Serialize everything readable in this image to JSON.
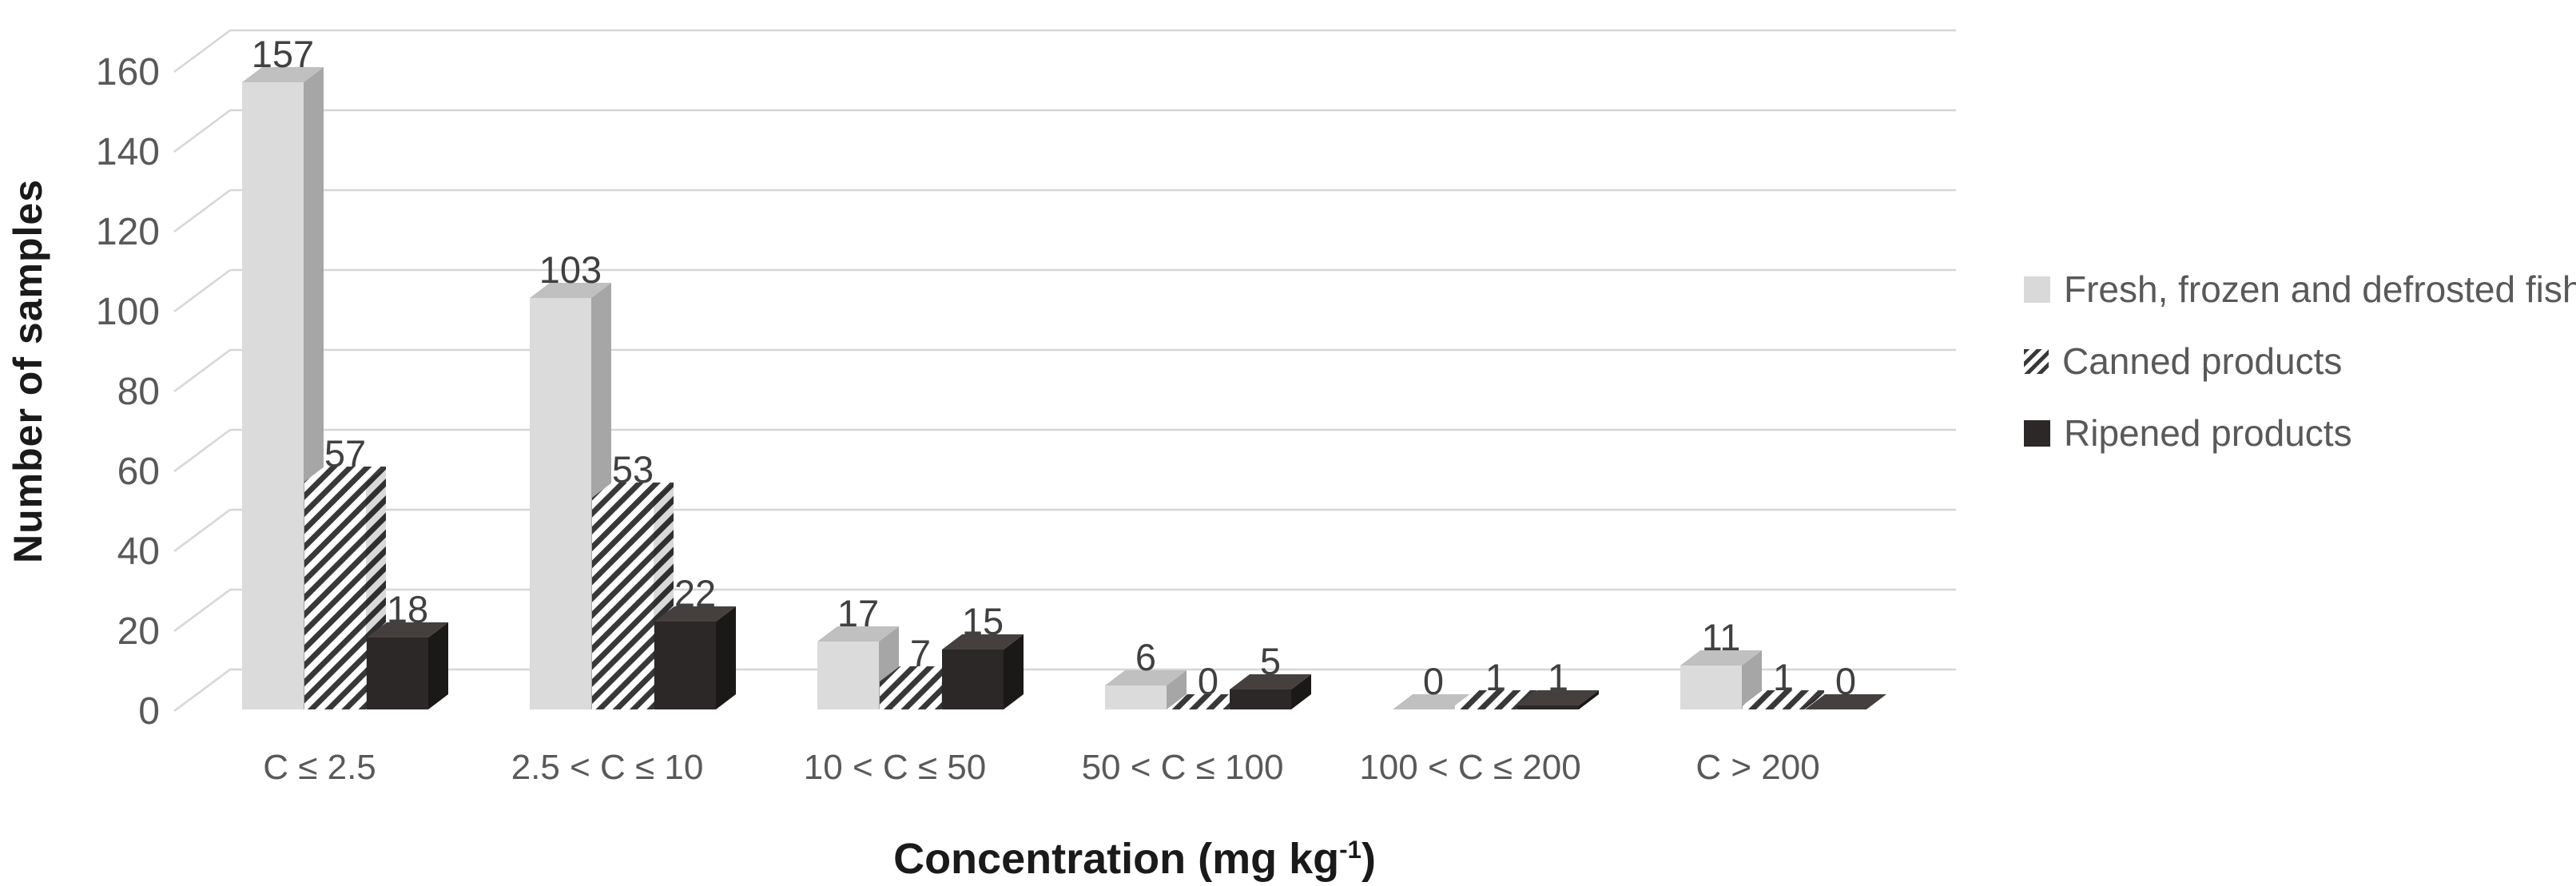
{
  "chart_data": {
    "type": "bar",
    "variant": "3d-clustered",
    "title": "",
    "xlabel": "Concentration (mg kg-1)",
    "xlabel_parts": {
      "base": "Concentration (mg kg",
      "sup": "-1",
      "close": ")"
    },
    "ylabel": "Number of samples",
    "categories": [
      "C ≤ 2.5",
      "2.5 < C ≤ 10",
      "10 < C ≤ 50",
      "50 < C ≤ 100",
      "100 < C ≤ 200",
      "C > 200"
    ],
    "series": [
      {
        "name": "Fresh, frozen and defrosted fish",
        "style": "fresh",
        "values": [
          157,
          103,
          17,
          6,
          0,
          11
        ]
      },
      {
        "name": "Canned products",
        "style": "canned",
        "values": [
          57,
          53,
          7,
          0,
          1,
          1
        ]
      },
      {
        "name": "Ripened products",
        "style": "ripened",
        "values": [
          18,
          22,
          15,
          5,
          1,
          0
        ]
      }
    ],
    "y_axis": {
      "ticks": [
        0,
        20,
        40,
        60,
        80,
        100,
        120,
        140,
        160
      ],
      "min": 0,
      "max": 160,
      "grid": true
    },
    "legend_position": "right",
    "data_labels": true
  },
  "colors": {
    "fresh_front": "#dbdbdb",
    "fresh_top": "#c0c0c0",
    "fresh_side": "#a6a6a6",
    "canned_stripe": "#383838",
    "canned_bg": "#ffffff",
    "canned_side_shade": "rgba(0,0,0,0.15)",
    "ripened_front": "#2b2827",
    "ripened_top": "#45403e",
    "ripened_side": "#1b1918",
    "gridline": "#d6d6d6",
    "tick_text": "#595959",
    "category_text": "#595959",
    "value_text": "#404040",
    "axis_title_text": "#1a1a1a",
    "legend_text": "#595959",
    "background": "#ffffff"
  }
}
